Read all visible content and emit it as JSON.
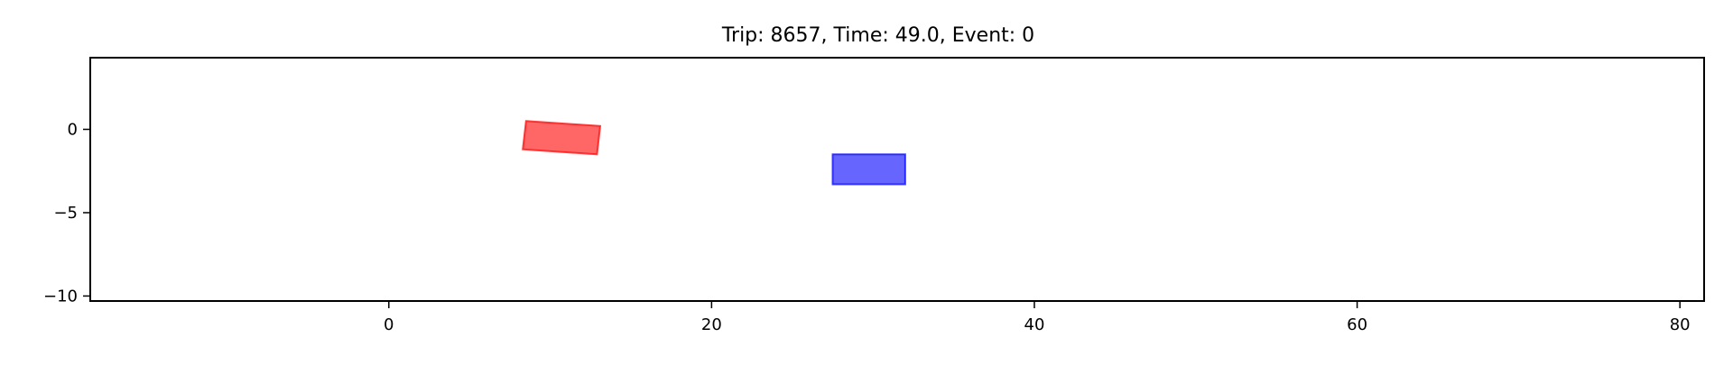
{
  "chart_data": {
    "type": "scatter",
    "title": "Trip: 8657, Time: 49.0, Event: 0",
    "xlabel": "",
    "ylabel": "",
    "xlim": [
      -18.5,
      81.5
    ],
    "ylim": [
      -10.3,
      4.3
    ],
    "grid": false,
    "xticks": [
      0,
      20,
      40,
      60,
      80
    ],
    "xtick_labels": [
      "0",
      "20",
      "40",
      "60",
      "80"
    ],
    "yticks": [
      0,
      -5,
      -10
    ],
    "ytick_labels": [
      "0",
      "−5",
      "−10"
    ],
    "vehicles": [
      {
        "name": "red-vehicle",
        "color": "#ff0000",
        "alpha": 0.6,
        "corners": [
          [
            8.5,
            0.5
          ],
          [
            13.1,
            0.2
          ],
          [
            12.9,
            -1.5
          ],
          [
            8.3,
            -1.2
          ]
        ]
      },
      {
        "name": "blue-vehicle",
        "color": "#0000ff",
        "alpha": 0.6,
        "corners": [
          [
            27.5,
            -1.5
          ],
          [
            32.0,
            -1.5
          ],
          [
            32.0,
            -3.3
          ],
          [
            27.5,
            -3.3
          ]
        ]
      }
    ]
  }
}
